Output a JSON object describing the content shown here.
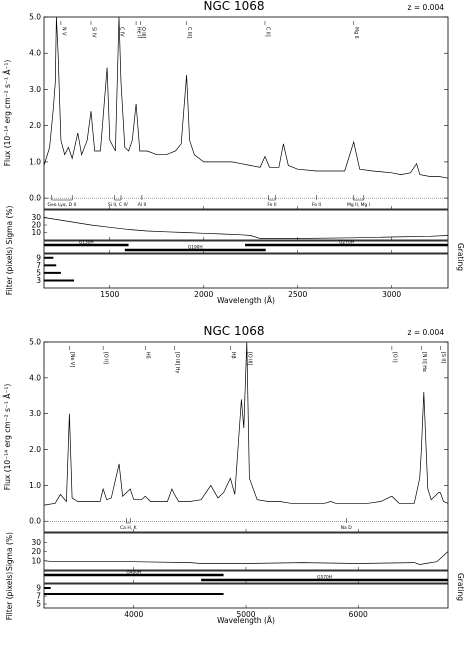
{
  "chart_data": [
    {
      "type": "line",
      "title": "NGC 1068",
      "redshift_label": "z = 0.004",
      "xlabel": "Wavelength (Å)",
      "xlim": [
        1150,
        3300
      ],
      "x_ticks": [
        1500,
        2000,
        2500,
        3000
      ],
      "flux_panel": {
        "ylabel": "Flux (10⁻¹⁴ erg cm⁻² s⁻¹ Å⁻¹)",
        "ylim": [
          -0.3,
          5.0
        ],
        "y_ticks": [
          "0.0",
          "1.0",
          "2.0",
          "3.0",
          "4.0",
          "5.0"
        ],
        "y_tick_values": [
          0,
          1,
          2,
          3,
          4,
          5
        ],
        "series": [
          {
            "x": [
              1150,
              1180,
              1200,
              1210,
              1216,
              1225,
              1240,
              1260,
              1280,
              1300,
              1330,
              1350,
              1380,
              1400,
              1420,
              1450,
              1486,
              1500,
              1530,
              1549,
              1560,
              1580,
              1600,
              1620,
              1640,
              1660,
              1700,
              1750,
              1800,
              1850,
              1880,
              1895,
              1909,
              1925,
              1950,
              2000,
              2050,
              2100,
              2150,
              2200,
              2250,
              2300,
              2326,
              2350,
              2400,
              2424,
              2450,
              2500,
              2600,
              2700,
              2750,
              2798,
              2830,
              2900,
              3000,
              3050,
              3100,
              3133,
              3150,
              3200,
              3250,
              3300
            ],
            "y": [
              0.9,
              1.4,
              2.5,
              3.2,
              5.0,
              4.0,
              1.6,
              1.2,
              1.4,
              1.1,
              1.8,
              1.2,
              1.6,
              2.4,
              1.3,
              1.3,
              3.6,
              1.6,
              1.3,
              5.0,
              3.2,
              1.4,
              1.3,
              1.6,
              2.6,
              1.3,
              1.3,
              1.2,
              1.2,
              1.3,
              1.5,
              2.5,
              3.4,
              1.6,
              1.2,
              1.0,
              1.0,
              1.0,
              1.0,
              0.95,
              0.9,
              0.85,
              1.15,
              0.85,
              0.85,
              1.5,
              0.9,
              0.8,
              0.75,
              0.75,
              0.75,
              1.55,
              0.8,
              0.75,
              0.7,
              0.65,
              0.7,
              0.95,
              0.65,
              0.6,
              0.6,
              0.55
            ]
          }
        ],
        "line_ids": [
          {
            "x": 1240,
            "label": "N V"
          },
          {
            "x": 1400,
            "label": "Si IV"
          },
          {
            "x": 1549,
            "label": "C IV"
          },
          {
            "x": 1640,
            "label": "He II"
          },
          {
            "x": 1663,
            "label": "O III]"
          },
          {
            "x": 1909,
            "label": "C III]"
          },
          {
            "x": 2326,
            "label": "C II]"
          },
          {
            "x": 2798,
            "label": "Mg II"
          }
        ],
        "abs_ids": [
          {
            "x1": 1190,
            "x2": 1300,
            "label": "Geo Lyα, D II"
          },
          {
            "x1": 1526,
            "x2": 1560,
            "label": "Si II, C IV"
          },
          {
            "x1": 1671,
            "x2": 1671,
            "label": "Al II"
          },
          {
            "x1": 2344,
            "x2": 2382,
            "label": "Fe II"
          },
          {
            "x1": 2600,
            "x2": 2600,
            "label": "Fe II"
          },
          {
            "x1": 2796,
            "x2": 2852,
            "label": "Mg II, Mg I"
          }
        ]
      },
      "sigma_panel": {
        "ylabel": "Sigma (%)",
        "y_ticks": [
          "10",
          "20",
          "30"
        ],
        "y_tick_values": [
          10,
          20,
          30
        ],
        "ylim": [
          0,
          40
        ],
        "x": [
          1150,
          1200,
          1300,
          1400,
          1500,
          1600,
          1700,
          1800,
          1900,
          2000,
          2100,
          2200,
          2250,
          2300,
          2500,
          2800,
          3000,
          3200,
          3300
        ],
        "y": [
          30,
          28,
          24,
          20,
          17,
          14,
          12,
          11,
          10,
          9,
          8,
          7,
          6,
          2,
          2,
          3,
          4,
          5,
          6
        ]
      },
      "grating_panel": {
        "label": "Grating",
        "gratings": [
          {
            "name": "G130H",
            "x1": 1150,
            "x2": 1600
          },
          {
            "name": "G190H",
            "x1": 1580,
            "x2": 2330
          },
          {
            "name": "G270H",
            "x1": 2220,
            "x2": 3300
          }
        ]
      },
      "filter_panel": {
        "ylabel": "Filter (pixels)",
        "y_ticks": [
          "3",
          "5",
          "7",
          "9"
        ],
        "y_tick_values": [
          3,
          5,
          7,
          9
        ],
        "ylim": [
          1,
          10
        ],
        "segments": [
          {
            "x1": 1150,
            "x2": 1200,
            "y": 9
          },
          {
            "x1": 1150,
            "x2": 1215,
            "y": 7
          },
          {
            "x1": 1150,
            "x2": 1240,
            "y": 5
          },
          {
            "x1": 1150,
            "x2": 1310,
            "y": 3
          }
        ]
      }
    },
    {
      "type": "line",
      "title": "NGC 1068",
      "redshift_label": "z = 0.004",
      "xlabel": "Wavelength (Å)",
      "xlim": [
        3200,
        6800
      ],
      "x_ticks": [
        4000,
        5000,
        6000
      ],
      "flux_panel": {
        "ylabel": "Flux (10⁻¹⁴ erg cm⁻² s⁻¹ Å⁻¹)",
        "ylim": [
          -0.3,
          5.0
        ],
        "y_ticks": [
          "0.0",
          "1.0",
          "2.0",
          "3.0",
          "4.0",
          "5.0"
        ],
        "y_tick_values": [
          0,
          1,
          2,
          3,
          4,
          5
        ],
        "series": [
          {
            "x": [
              3200,
              3300,
              3346,
              3400,
              3426,
              3450,
              3500,
              3600,
              3700,
              3727,
              3760,
              3800,
              3869,
              3900,
              3968,
              4000,
              4069,
              4102,
              4150,
              4200,
              4300,
              4340,
              4363,
              4400,
              4500,
              4600,
              4686,
              4750,
              4800,
              4861,
              4900,
              4959,
              4980,
              5007,
              5030,
              5100,
              5200,
              5300,
              5400,
              5500,
              5600,
              5700,
              5755,
              5800,
              5900,
              6000,
              6087,
              6200,
              6300,
              6364,
              6400,
              6500,
              6548,
              6563,
              6584,
              6620,
              6650,
              6716,
              6731,
              6760,
              6800
            ],
            "y": [
              0.45,
              0.5,
              0.75,
              0.55,
              3.0,
              0.65,
              0.55,
              0.55,
              0.55,
              0.9,
              0.6,
              0.65,
              1.6,
              0.7,
              0.9,
              0.6,
              0.6,
              0.7,
              0.55,
              0.55,
              0.55,
              0.9,
              0.75,
              0.55,
              0.55,
              0.6,
              1.0,
              0.65,
              0.8,
              1.2,
              0.75,
              3.4,
              2.6,
              5.0,
              1.2,
              0.6,
              0.55,
              0.55,
              0.5,
              0.5,
              0.5,
              0.5,
              0.55,
              0.5,
              0.5,
              0.5,
              0.5,
              0.55,
              0.7,
              0.5,
              0.5,
              0.5,
              1.2,
              2.0,
              3.6,
              0.9,
              0.6,
              0.8,
              0.8,
              0.55,
              0.5
            ]
          }
        ],
        "line_ids": [
          {
            "x": 3426,
            "label": "[Ne V]"
          },
          {
            "x": 3727,
            "label": "[O II]"
          },
          {
            "x": 4102,
            "label": "Hδ"
          },
          {
            "x": 4363,
            "label": "[O III] Hγ"
          },
          {
            "x": 4861,
            "label": "Hβ"
          },
          {
            "x": 5007,
            "label": "[O III]"
          },
          {
            "x": 6300,
            "label": "[O I]"
          },
          {
            "x": 6563,
            "label": "[N II] Hα"
          },
          {
            "x": 6731,
            "label": "[S II]"
          }
        ],
        "abs_ids": [
          {
            "x1": 3934,
            "x2": 3968,
            "label": "Ca H, K"
          },
          {
            "x1": 5893,
            "x2": 5893,
            "label": "Na D"
          }
        ]
      },
      "sigma_panel": {
        "ylabel": "Sigma (%)",
        "y_ticks": [
          "10",
          "20",
          "30"
        ],
        "y_tick_values": [
          10,
          20,
          30
        ],
        "ylim": [
          0,
          40
        ],
        "x": [
          3200,
          3300,
          3500,
          4000,
          4500,
          4600,
          5000,
          5500,
          6000,
          6500,
          6550,
          6600,
          6700,
          6800
        ],
        "y": [
          10,
          9,
          9,
          9,
          8,
          7,
          7,
          8,
          7,
          8,
          6,
          7,
          9,
          20
        ]
      },
      "grating_panel": {
        "label": "Grating",
        "gratings": [
          {
            "name": "G400H",
            "x1": 3200,
            "x2": 4800
          },
          {
            "name": "G570H",
            "x1": 4600,
            "x2": 6800
          }
        ]
      },
      "filter_panel": {
        "ylabel": "Filter (pixels)",
        "y_ticks": [
          "5",
          "7",
          "9"
        ],
        "y_tick_values": [
          5,
          7,
          9
        ],
        "ylim": [
          4,
          10
        ],
        "segments": [
          {
            "x1": 3200,
            "x2": 3260,
            "y": 9
          },
          {
            "x1": 3200,
            "x2": 4800,
            "y": 7.5
          }
        ]
      }
    }
  ]
}
